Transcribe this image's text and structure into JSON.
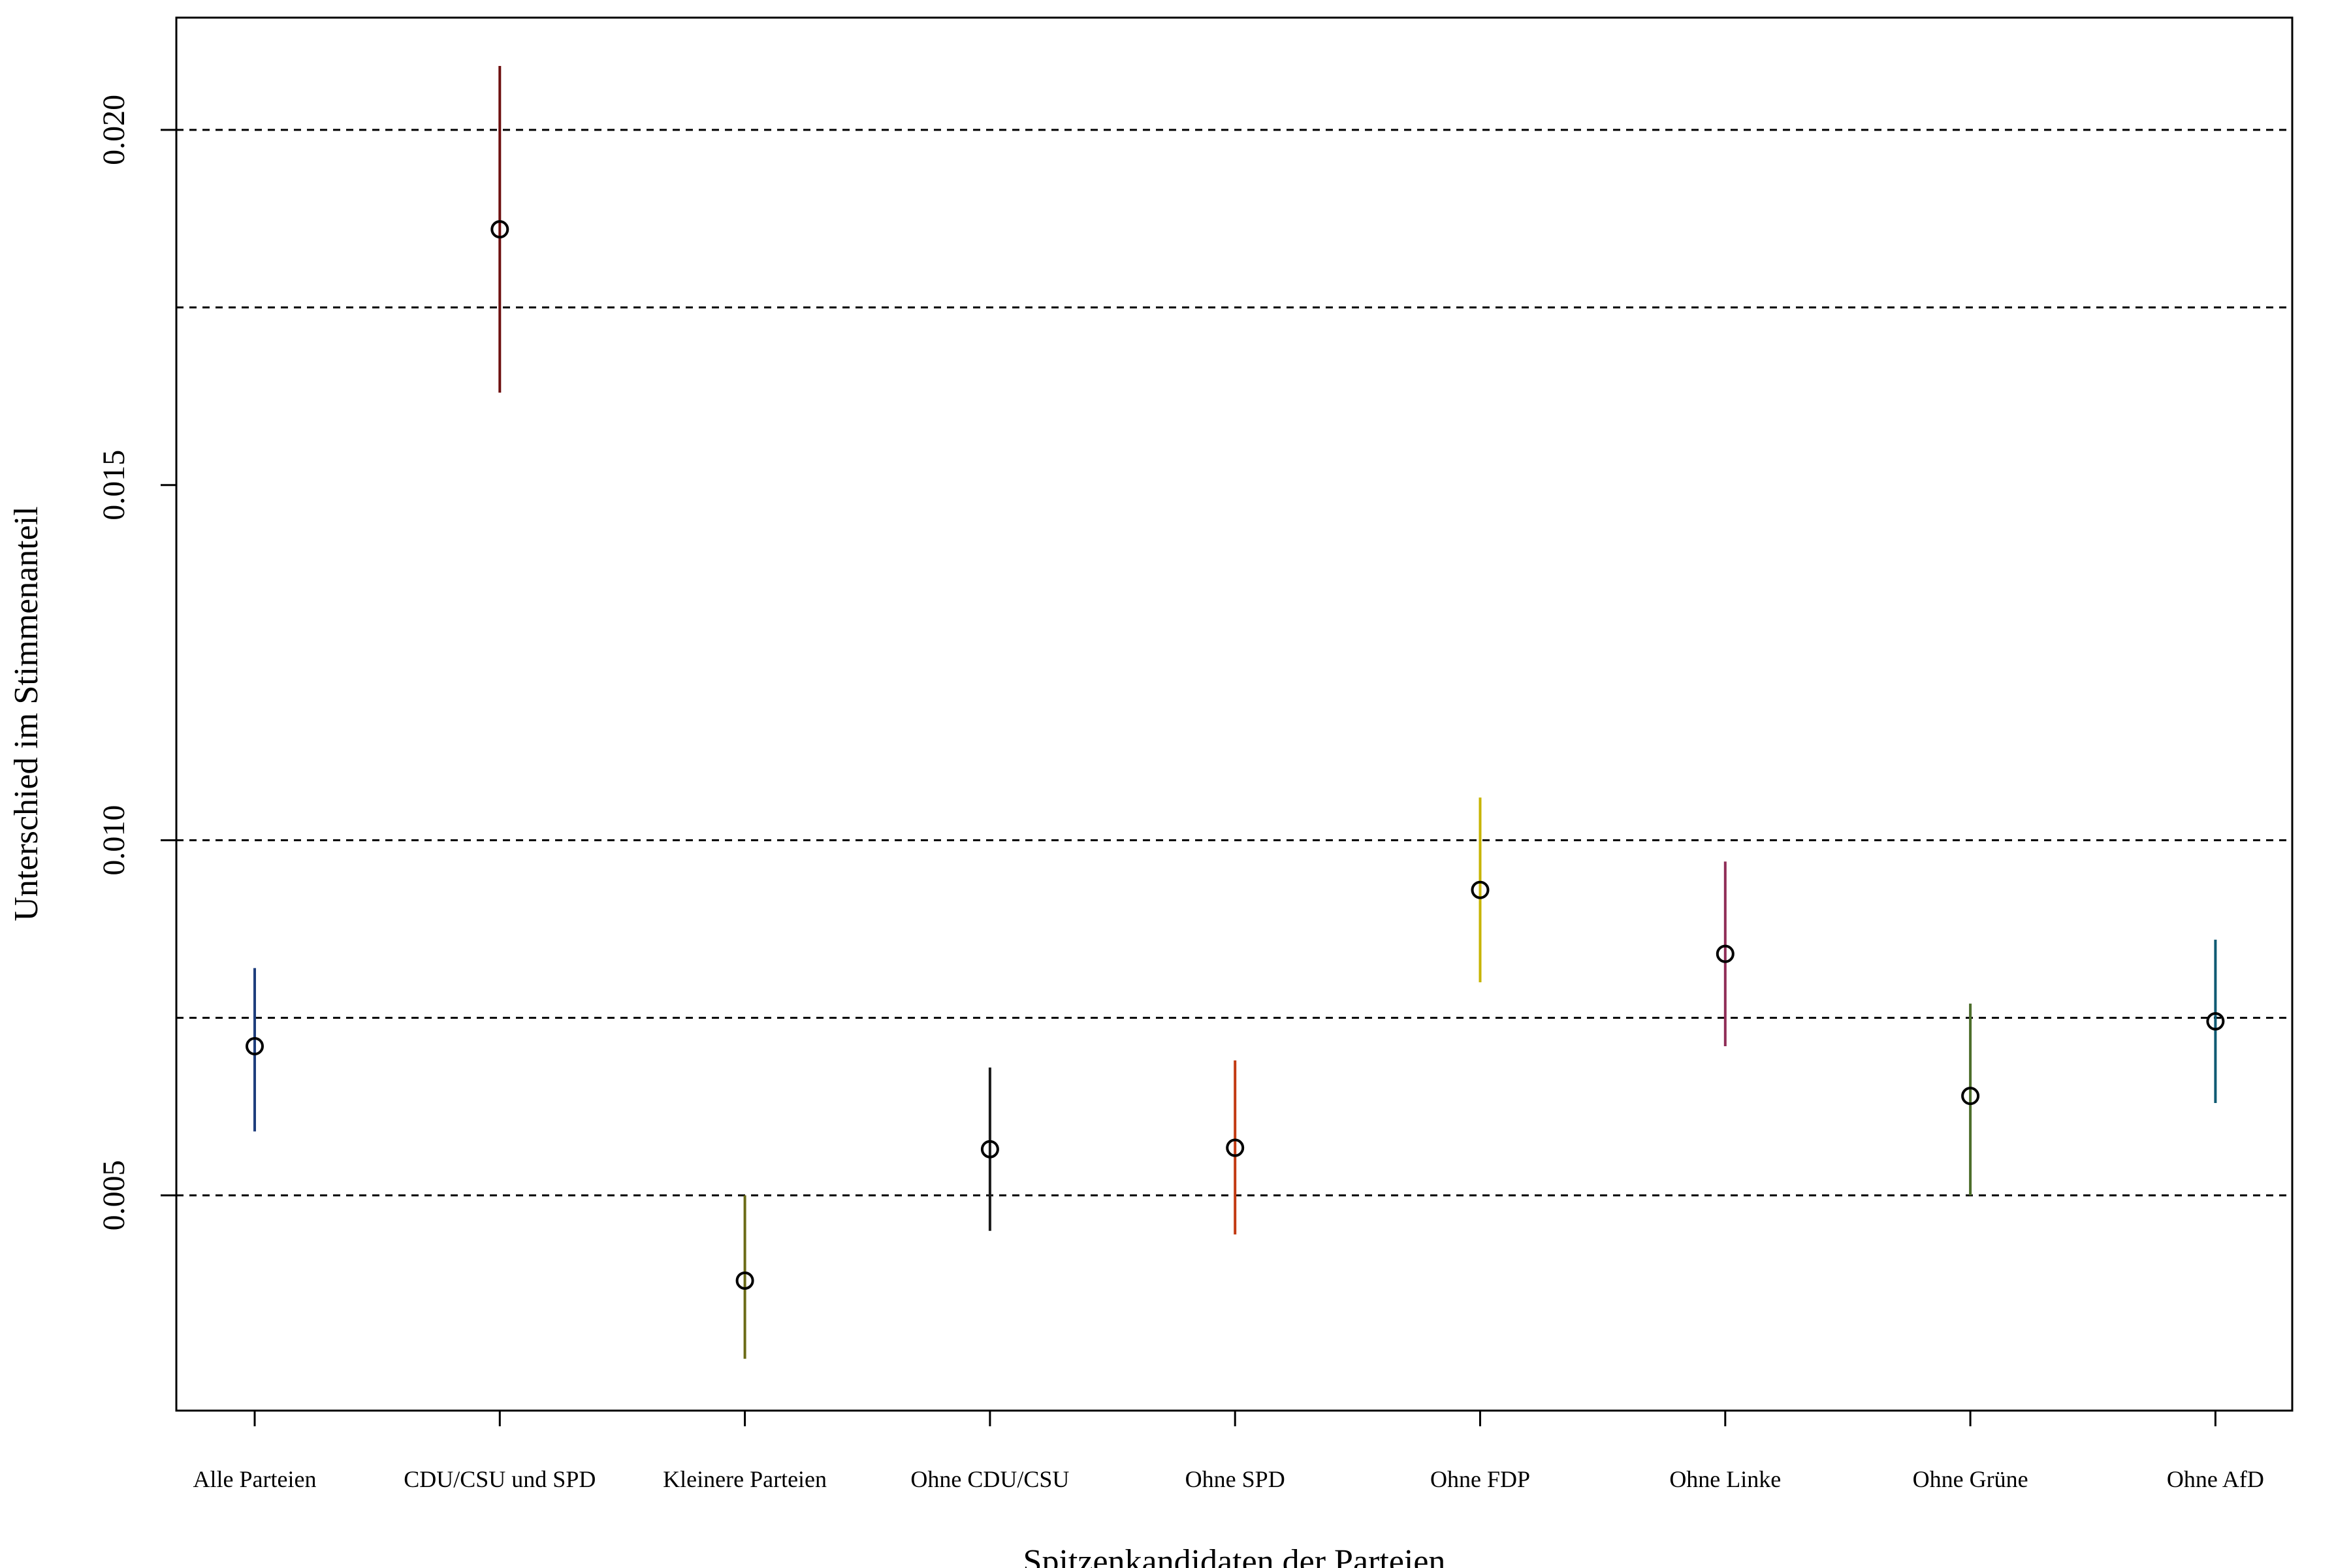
{
  "chart_data": {
    "type": "scatter",
    "title": "",
    "xlabel": "Spitzenkandidaten der Parteien",
    "ylabel": "Unterschied im Stimmenanteil",
    "categories": [
      "Alle Parteien",
      "CDU/CSU und SPD",
      "Kleinere Parteien",
      "Ohne CDU/CSU",
      "Ohne SPD",
      "Ohne FDP",
      "Ohne Linke",
      "Ohne Grüne",
      "Ohne AfD"
    ],
    "values": [
      0.0071,
      0.0186,
      0.0038,
      0.00565,
      0.00567,
      0.0093,
      0.0084,
      0.0064,
      0.00745
    ],
    "lower": [
      0.0059,
      0.0163,
      0.0027,
      0.0045,
      0.00445,
      0.008,
      0.0071,
      0.005,
      0.0063
    ],
    "upper": [
      0.0082,
      0.0209,
      0.005,
      0.0068,
      0.0069,
      0.0106,
      0.0097,
      0.0077,
      0.0086
    ],
    "colors": [
      "#1f3e7d",
      "#6e1010",
      "#6b6b16",
      "#1a1a1a",
      "#c23a12",
      "#c7b400",
      "#8f2d57",
      "#4d6e2b",
      "#0f5a73"
    ],
    "ylim": [
      0.00197,
      0.02158
    ],
    "yticks": [
      0.005,
      0.01,
      0.015,
      0.02
    ],
    "ytick_labels": [
      "0.005",
      "0.010",
      "0.015",
      "0.020"
    ],
    "reference_lines": [
      0.005,
      0.0075,
      0.01,
      0.0175,
      0.02
    ],
    "reference_line_style": "dashed",
    "marker": "open-circle",
    "grid": false,
    "legend": "none"
  }
}
